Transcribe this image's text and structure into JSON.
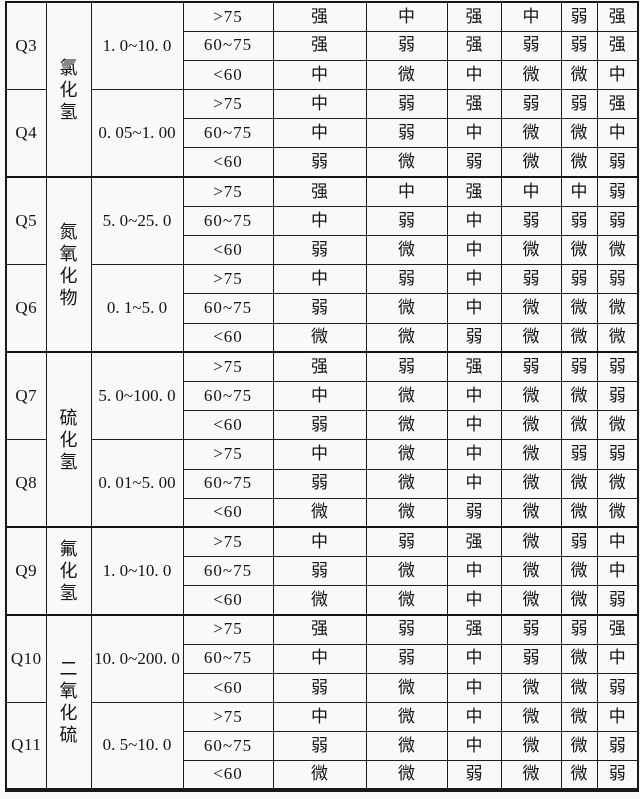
{
  "table": {
    "groups": [
      {
        "chemical": "氯化氢",
        "entries": [
          {
            "id": "Q3",
            "range": "1. 0~10. 0",
            "rows": [
              {
                "threshold": ">75",
                "values": [
                  "强",
                  "中",
                  "强",
                  "中",
                  "弱",
                  "强"
                ]
              },
              {
                "threshold": "60~75",
                "values": [
                  "强",
                  "弱",
                  "强",
                  "弱",
                  "弱",
                  "强"
                ]
              },
              {
                "threshold": "<60",
                "values": [
                  "中",
                  "微",
                  "中",
                  "微",
                  "微",
                  "中"
                ]
              }
            ]
          },
          {
            "id": "Q4",
            "range": "0. 05~1. 00",
            "rows": [
              {
                "threshold": ">75",
                "values": [
                  "中",
                  "弱",
                  "强",
                  "弱",
                  "弱",
                  "强"
                ]
              },
              {
                "threshold": "60~75",
                "values": [
                  "中",
                  "弱",
                  "中",
                  "微",
                  "微",
                  "中"
                ]
              },
              {
                "threshold": "<60",
                "values": [
                  "弱",
                  "微",
                  "弱",
                  "微",
                  "微",
                  "弱"
                ]
              }
            ]
          }
        ]
      },
      {
        "chemical": "氮氧化物",
        "entries": [
          {
            "id": "Q5",
            "range": "5. 0~25. 0",
            "rows": [
              {
                "threshold": ">75",
                "values": [
                  "强",
                  "中",
                  "强",
                  "中",
                  "中",
                  "弱"
                ]
              },
              {
                "threshold": "60~75",
                "values": [
                  "中",
                  "弱",
                  "中",
                  "弱",
                  "弱",
                  "弱"
                ]
              },
              {
                "threshold": "<60",
                "values": [
                  "弱",
                  "微",
                  "中",
                  "微",
                  "微",
                  "微"
                ]
              }
            ]
          },
          {
            "id": "Q6",
            "range": "0. 1~5. 0",
            "rows": [
              {
                "threshold": ">75",
                "values": [
                  "中",
                  "弱",
                  "中",
                  "弱",
                  "弱",
                  "弱"
                ]
              },
              {
                "threshold": "60~75",
                "values": [
                  "弱",
                  "微",
                  "中",
                  "微",
                  "微",
                  "微"
                ]
              },
              {
                "threshold": "<60",
                "values": [
                  "微",
                  "微",
                  "弱",
                  "微",
                  "微",
                  "微"
                ]
              }
            ]
          }
        ]
      },
      {
        "chemical": "硫化氢",
        "entries": [
          {
            "id": "Q7",
            "range": "5. 0~100. 0",
            "rows": [
              {
                "threshold": ">75",
                "values": [
                  "强",
                  "弱",
                  "强",
                  "弱",
                  "弱",
                  "弱"
                ]
              },
              {
                "threshold": "60~75",
                "values": [
                  "中",
                  "微",
                  "中",
                  "微",
                  "微",
                  "弱"
                ]
              },
              {
                "threshold": "<60",
                "values": [
                  "弱",
                  "微",
                  "中",
                  "微",
                  "微",
                  "微"
                ]
              }
            ]
          },
          {
            "id": "Q8",
            "range": "0. 01~5. 00",
            "rows": [
              {
                "threshold": ">75",
                "values": [
                  "中",
                  "微",
                  "中",
                  "微",
                  "弱",
                  "弱"
                ]
              },
              {
                "threshold": "60~75",
                "values": [
                  "弱",
                  "微",
                  "中",
                  "微",
                  "微",
                  "微"
                ]
              },
              {
                "threshold": "<60",
                "values": [
                  "微",
                  "微",
                  "弱",
                  "微",
                  "微",
                  "微"
                ]
              }
            ]
          }
        ]
      },
      {
        "chemical": "氟化氢",
        "entries": [
          {
            "id": "Q9",
            "range": "1. 0~10. 0",
            "rows": [
              {
                "threshold": ">75",
                "values": [
                  "中",
                  "弱",
                  "强",
                  "微",
                  "弱",
                  "中"
                ]
              },
              {
                "threshold": "60~75",
                "values": [
                  "弱",
                  "微",
                  "中",
                  "微",
                  "微",
                  "中"
                ]
              },
              {
                "threshold": "<60",
                "values": [
                  "微",
                  "微",
                  "中",
                  "微",
                  "微",
                  "弱"
                ]
              }
            ]
          }
        ]
      },
      {
        "chemical": "二氧化硫",
        "entries": [
          {
            "id": "Q10",
            "range": "10. 0~200. 0",
            "rows": [
              {
                "threshold": ">75",
                "values": [
                  "强",
                  "弱",
                  "强",
                  "弱",
                  "弱",
                  "强"
                ]
              },
              {
                "threshold": "60~75",
                "values": [
                  "中",
                  "弱",
                  "中",
                  "弱",
                  "微",
                  "中"
                ]
              },
              {
                "threshold": "<60",
                "values": [
                  "弱",
                  "微",
                  "中",
                  "微",
                  "微",
                  "弱"
                ]
              }
            ]
          },
          {
            "id": "Q11",
            "range": "0. 5~10. 0",
            "rows": [
              {
                "threshold": ">75",
                "values": [
                  "中",
                  "微",
                  "中",
                  "微",
                  "微",
                  "中"
                ]
              },
              {
                "threshold": "60~75",
                "values": [
                  "弱",
                  "微",
                  "中",
                  "微",
                  "微",
                  "弱"
                ]
              },
              {
                "threshold": "<60",
                "values": [
                  "微",
                  "微",
                  "弱",
                  "微",
                  "微",
                  "弱"
                ]
              }
            ]
          }
        ]
      }
    ]
  }
}
